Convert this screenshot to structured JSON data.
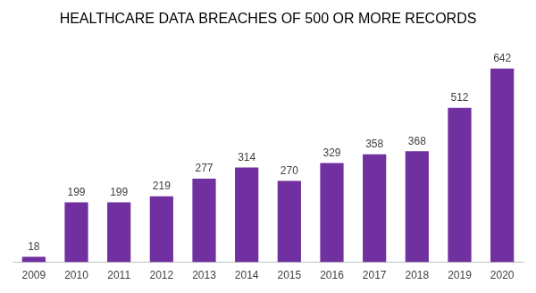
{
  "chart_data": {
    "type": "bar",
    "title": "HEALTHCARE DATA BREACHES OF 500 OR MORE RECORDS",
    "categories": [
      "2009",
      "2010",
      "2011",
      "2012",
      "2013",
      "2014",
      "2015",
      "2016",
      "2017",
      "2018",
      "2019",
      "2020"
    ],
    "values": [
      18,
      199,
      199,
      219,
      277,
      314,
      270,
      329,
      358,
      368,
      512,
      642
    ],
    "color": "#7030a0",
    "grid": false,
    "data_labels": true,
    "tick_labels": "x"
  }
}
